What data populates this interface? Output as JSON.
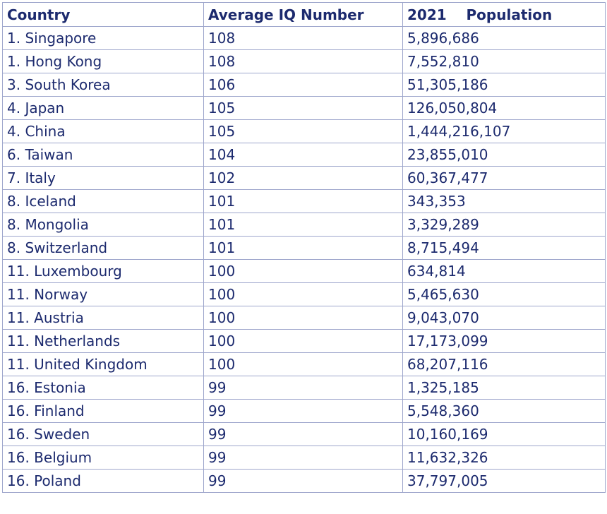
{
  "table": {
    "header": [
      "Country",
      "Average IQ Number",
      "2021    Population"
    ],
    "rows": [
      [
        "1. Singapore",
        "108",
        "5,896,686"
      ],
      [
        "1. Hong Kong",
        "108",
        "7,552,810"
      ],
      [
        "3. South Korea",
        "106",
        "51,305,186"
      ],
      [
        "4. Japan",
        "105",
        "126,050,804"
      ],
      [
        "4. China",
        "105",
        "1,444,216,107"
      ],
      [
        "6. Taiwan",
        "104",
        "23,855,010"
      ],
      [
        "7. Italy",
        "102",
        "60,367,477"
      ],
      [
        "8. Iceland",
        "101",
        "343,353"
      ],
      [
        "8. Mongolia",
        "101",
        "3,329,289"
      ],
      [
        "8. Switzerland",
        "101",
        "8,715,494"
      ],
      [
        "11. Luxembourg",
        "100",
        "634,814"
      ],
      [
        "11. Norway",
        "100",
        "5,465,630"
      ],
      [
        "11. Austria",
        "100",
        "9,043,070"
      ],
      [
        "11. Netherlands",
        "100",
        "17,173,099"
      ],
      [
        "11. United Kingdom",
        "100",
        "68,207,116"
      ],
      [
        "16. Estonia",
        "99",
        "1,325,185"
      ],
      [
        "16. Finland",
        "99",
        "5,548,360"
      ],
      [
        "16. Sweden",
        "99",
        "10,160,169"
      ],
      [
        "16. Belgium",
        "99",
        "11,632,326"
      ],
      [
        "16. Poland",
        "99",
        "37,797,005"
      ]
    ]
  }
}
